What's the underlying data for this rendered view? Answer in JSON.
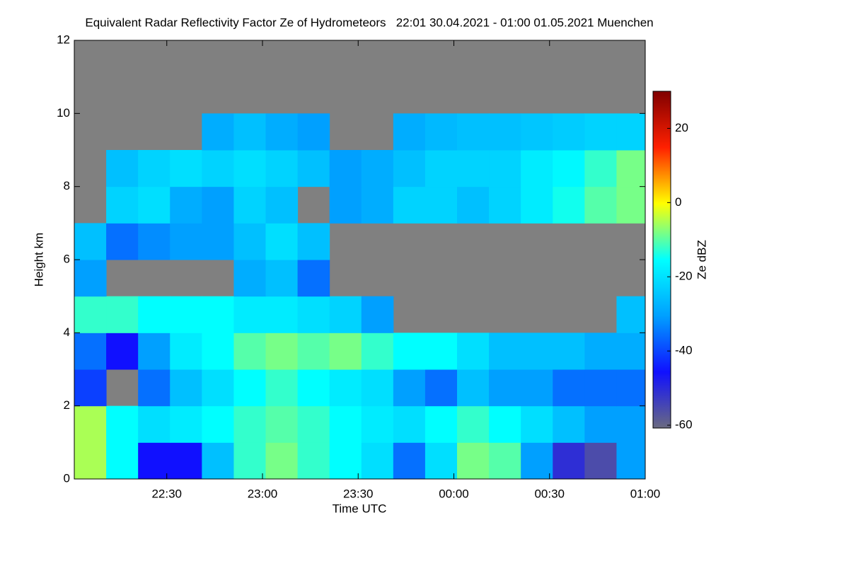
{
  "chart_data": {
    "type": "heatmap",
    "title": "Equivalent Radar Reflectivity Factor Ze of Hydrometeors   22:01 30.04.2021 - 01:00 01.05.2021 Muenchen",
    "x_label": "Time UTC",
    "y_label": "Height km",
    "colorbar_label": "Ze dBZ",
    "xlim": [
      "22:01",
      "01:00"
    ],
    "xticks": [
      "22:30",
      "23:00",
      "23:30",
      "00:00",
      "00:30",
      "01:00"
    ],
    "ylim": [
      0,
      12
    ],
    "yticks": [
      0,
      2,
      4,
      6,
      8,
      10,
      12
    ],
    "zlim": [
      -60,
      30
    ],
    "zticks": [
      -60,
      -40,
      -20,
      0,
      20
    ],
    "background": "#808080",
    "colormap": [
      "#6a6a80",
      "#1010ff",
      "#00a0ff",
      "#00ffff",
      "#ffff00",
      "#ff2000",
      "#800000"
    ],
    "x": [
      "22:01",
      "22:11",
      "22:21",
      "22:31",
      "22:41",
      "22:51",
      "23:01",
      "23:11",
      "23:21",
      "23:31",
      "23:41",
      "23:51",
      "00:01",
      "00:11",
      "00:21",
      "00:31",
      "00:41",
      "00:51"
    ],
    "y": [
      0,
      1,
      2,
      3,
      4,
      5,
      6,
      7,
      8,
      9,
      10,
      11
    ],
    "z": [
      [
        -5,
        -15,
        -45,
        -45,
        -25,
        -12,
        -8,
        -12,
        -15,
        -20,
        -35,
        -20,
        -8,
        -10,
        -30,
        -50,
        -55,
        -30
      ],
      [
        -5,
        -15,
        -20,
        -18,
        -15,
        -12,
        -10,
        -12,
        -15,
        -18,
        -20,
        -15,
        -12,
        -15,
        -20,
        -25,
        -30,
        -30
      ],
      [
        -40,
        null,
        -35,
        -25,
        -20,
        -15,
        -12,
        -15,
        -18,
        -20,
        -30,
        -35,
        -25,
        -30,
        -30,
        -35,
        -35,
        -35
      ],
      [
        -35,
        -45,
        -30,
        -18,
        -15,
        -10,
        -8,
        -10,
        -8,
        -12,
        -15,
        -15,
        -20,
        -25,
        -25,
        -25,
        -28,
        -28
      ],
      [
        -12,
        -12,
        -15,
        -15,
        -15,
        -18,
        -18,
        -20,
        -22,
        -30,
        null,
        null,
        null,
        null,
        null,
        null,
        null,
        -25
      ],
      [
        -30,
        null,
        null,
        null,
        null,
        -28,
        -25,
        -35,
        null,
        null,
        null,
        null,
        null,
        null,
        null,
        null,
        null,
        null
      ],
      [
        -25,
        -35,
        -32,
        -30,
        -30,
        -25,
        -20,
        -25,
        null,
        null,
        null,
        null,
        null,
        null,
        null,
        null,
        null,
        null
      ],
      [
        null,
        -22,
        -20,
        -28,
        -30,
        -22,
        -25,
        null,
        -30,
        -28,
        -22,
        -22,
        -25,
        -22,
        -18,
        -14,
        -10,
        -8
      ],
      [
        null,
        -25,
        -22,
        -20,
        -22,
        -20,
        -22,
        -25,
        -30,
        -28,
        -25,
        -22,
        -22,
        -22,
        -18,
        -16,
        -12,
        -8
      ],
      [
        null,
        null,
        null,
        null,
        -28,
        -25,
        -28,
        -30,
        null,
        null,
        -28,
        -26,
        -25,
        -25,
        -24,
        -23,
        -22,
        -22
      ],
      [
        null,
        null,
        null,
        null,
        null,
        null,
        null,
        null,
        null,
        null,
        null,
        null,
        null,
        null,
        null,
        null,
        null,
        null
      ],
      [
        null,
        null,
        null,
        null,
        null,
        null,
        null,
        null,
        null,
        null,
        null,
        null,
        null,
        null,
        null,
        null,
        null,
        null
      ]
    ]
  }
}
